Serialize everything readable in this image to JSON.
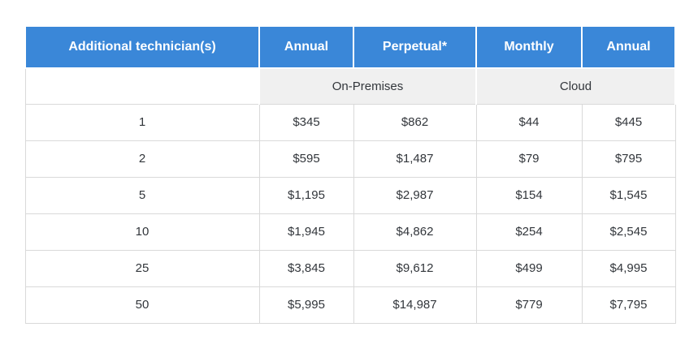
{
  "chart_data": {
    "type": "table",
    "columns": [
      "Additional technician(s)",
      "Annual",
      "Perpetual*",
      "Monthly",
      "Annual"
    ],
    "column_groups": [
      {
        "label": "On-Premises",
        "columns": [
          "Annual",
          "Perpetual*"
        ]
      },
      {
        "label": "Cloud",
        "columns": [
          "Monthly",
          "Annual"
        ]
      }
    ],
    "rows": [
      [
        "1",
        "$345",
        "$862",
        "$44",
        "$445"
      ],
      [
        "2",
        "$595",
        "$1,487",
        "$79",
        "$795"
      ],
      [
        "5",
        "$1,195",
        "$2,987",
        "$154",
        "$1,545"
      ],
      [
        "10",
        "$1,945",
        "$4,862",
        "$254",
        "$2,545"
      ],
      [
        "25",
        "$3,845",
        "$9,612",
        "$499",
        "$4,995"
      ],
      [
        "50",
        "$5,995",
        "$14,987",
        "$779",
        "$7,795"
      ]
    ]
  },
  "colors": {
    "header_bg": "#3a87d8",
    "header_text": "#ffffff",
    "group_bg": "#f0f0f0",
    "border": "#d9d9d9",
    "text": "#32363b",
    "page_bg": "#ffffff"
  }
}
